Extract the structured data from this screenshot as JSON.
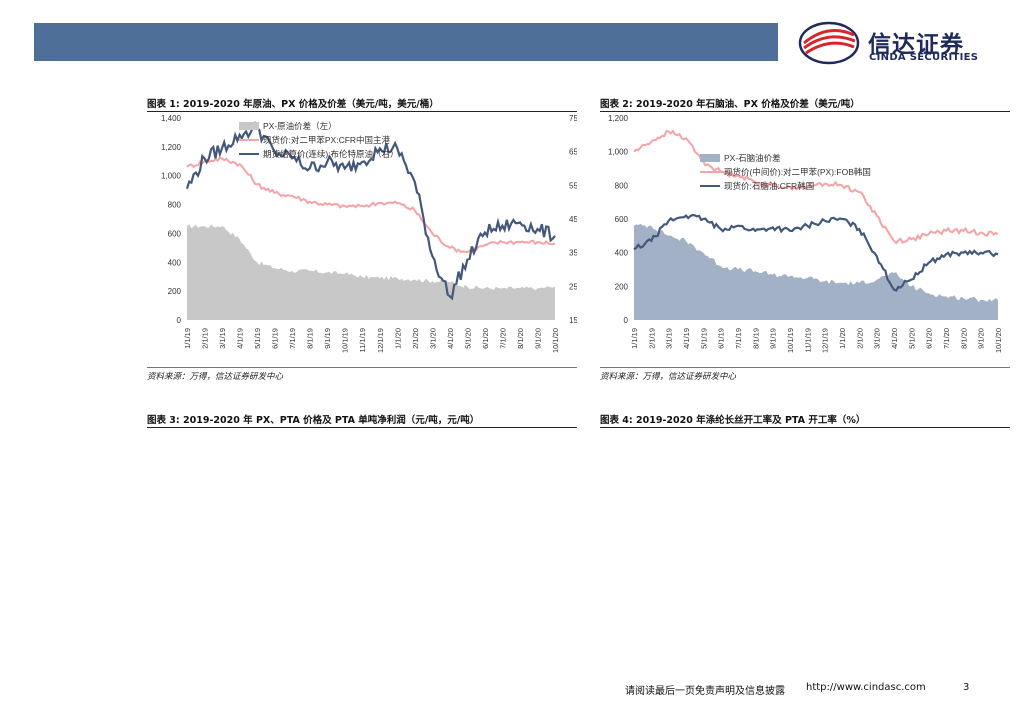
{
  "header": {
    "logo_cn": "信达证券",
    "logo_en": "CINDA SECURITIES"
  },
  "figures": [
    {
      "title": "图表 1:  2019-2020 年原油、PX 价格及价差（美元/吨，美元/桶）",
      "source": "资料来源：万得，信达证券研发中心"
    },
    {
      "title": "图表 2:  2019-2020 年石脑油、PX 价格及价差（美元/吨）",
      "source": "资料来源：万得，信达证券研发中心"
    },
    {
      "title": "图表 3:  2019-2020 年 PX、PTA 价格及 PTA 单吨净利润（元/吨，元/吨）"
    },
    {
      "title": "图表 4:    2019-2020 年涤纶长丝开工率及 PTA 开工率（%）"
    }
  ],
  "footer": {
    "disclaimer": "请阅读最后一页免责声明及信息披露",
    "url": "http://www.cindasc.com",
    "page": "3"
  },
  "colors": {
    "header_bar": "#4d6f98",
    "pink": "#f4a3a6",
    "navy": "#44587c",
    "gray_area": "#c8c8c8",
    "steel_area": "#a3b1c6"
  },
  "chart_data": [
    {
      "type": "area+line",
      "title": "图表 1:  2019-2020 年原油、PX 价格及价差（美元/吨，美元/桶）",
      "ylim": [
        0,
        1400
      ],
      "y2lim": [
        15,
        75
      ],
      "yticks": [
        "1,400",
        "1,200",
        "1,000",
        "800",
        "600",
        "400",
        "200",
        "0"
      ],
      "y2ticks": [
        "75",
        "65",
        "55",
        "45",
        "35",
        "25",
        "15"
      ],
      "categories": [
        "1/1/19",
        "2/1/19",
        "3/1/19",
        "4/1/19",
        "5/1/19",
        "6/1/19",
        "7/1/19",
        "8/1/19",
        "9/1/19",
        "10/1/19",
        "11/1/19",
        "12/1/19",
        "1/1/20",
        "2/1/20",
        "3/1/20",
        "4/1/20",
        "5/1/20",
        "6/1/20",
        "7/1/20",
        "8/1/20",
        "9/1/20",
        "10/1/20"
      ],
      "series": [
        {
          "name": "PX-原油价差（左）",
          "kind": "area",
          "axis": "left",
          "color": "#c8c8c8",
          "values": [
            650,
            650,
            650,
            560,
            400,
            360,
            340,
            340,
            330,
            320,
            300,
            290,
            290,
            280,
            270,
            260,
            230,
            220,
            220,
            220,
            220,
            230
          ]
        },
        {
          "name": "现货价:对二甲苯PX:CFR中国主港",
          "kind": "line",
          "axis": "left",
          "color": "#f4a3a6",
          "values": [
            1060,
            1100,
            1120,
            1080,
            940,
            880,
            860,
            820,
            800,
            790,
            790,
            810,
            810,
            760,
            600,
            500,
            470,
            520,
            540,
            540,
            540,
            530
          ]
        },
        {
          "name": "期货结算价(连续):布伦特原油（右）",
          "kind": "line",
          "axis": "right",
          "color": "#44587c",
          "values": [
            54,
            63,
            66,
            70,
            72,
            65,
            63,
            60,
            62,
            60,
            62,
            66,
            66,
            56,
            34,
            22,
            33,
            41,
            43,
            44,
            42,
            40
          ]
        }
      ]
    },
    {
      "type": "area+line",
      "title": "图表 2:  2019-2020 年石脑油、PX 价格及价差（美元/吨）",
      "ylim": [
        0,
        1200
      ],
      "yticks": [
        "1,200",
        "1,000",
        "800",
        "600",
        "400",
        "200",
        "0"
      ],
      "categories": [
        "1/1/19",
        "2/1/19",
        "3/1/19",
        "4/1/19",
        "5/1/19",
        "6/1/19",
        "7/1/19",
        "8/1/19",
        "9/1/19",
        "10/1/19",
        "11/1/19",
        "12/1/19",
        "1/1/20",
        "2/1/20",
        "3/1/20",
        "4/1/20",
        "5/1/20",
        "6/1/20",
        "7/1/20",
        "8/1/20",
        "9/1/20",
        "10/1/20"
      ],
      "series": [
        {
          "name": "PX-石脑油价差",
          "kind": "area",
          "color": "#a3b1c6",
          "values": [
            560,
            560,
            500,
            470,
            400,
            320,
            300,
            290,
            270,
            260,
            250,
            230,
            220,
            220,
            240,
            280,
            200,
            160,
            140,
            130,
            120,
            120
          ]
        },
        {
          "name": "现货价(中间价):对二甲苯(PX):FOB韩国",
          "kind": "line",
          "color": "#f4a3a6",
          "values": [
            1000,
            1060,
            1120,
            1080,
            940,
            880,
            860,
            820,
            800,
            790,
            790,
            810,
            800,
            760,
            620,
            470,
            480,
            510,
            530,
            530,
            520,
            510
          ]
        },
        {
          "name": "现货价:石脑油:CFR韩国",
          "kind": "line",
          "color": "#44587c",
          "values": [
            420,
            470,
            590,
            620,
            600,
            540,
            560,
            530,
            550,
            530,
            560,
            590,
            600,
            540,
            380,
            180,
            240,
            340,
            390,
            400,
            400,
            390
          ]
        }
      ]
    }
  ]
}
